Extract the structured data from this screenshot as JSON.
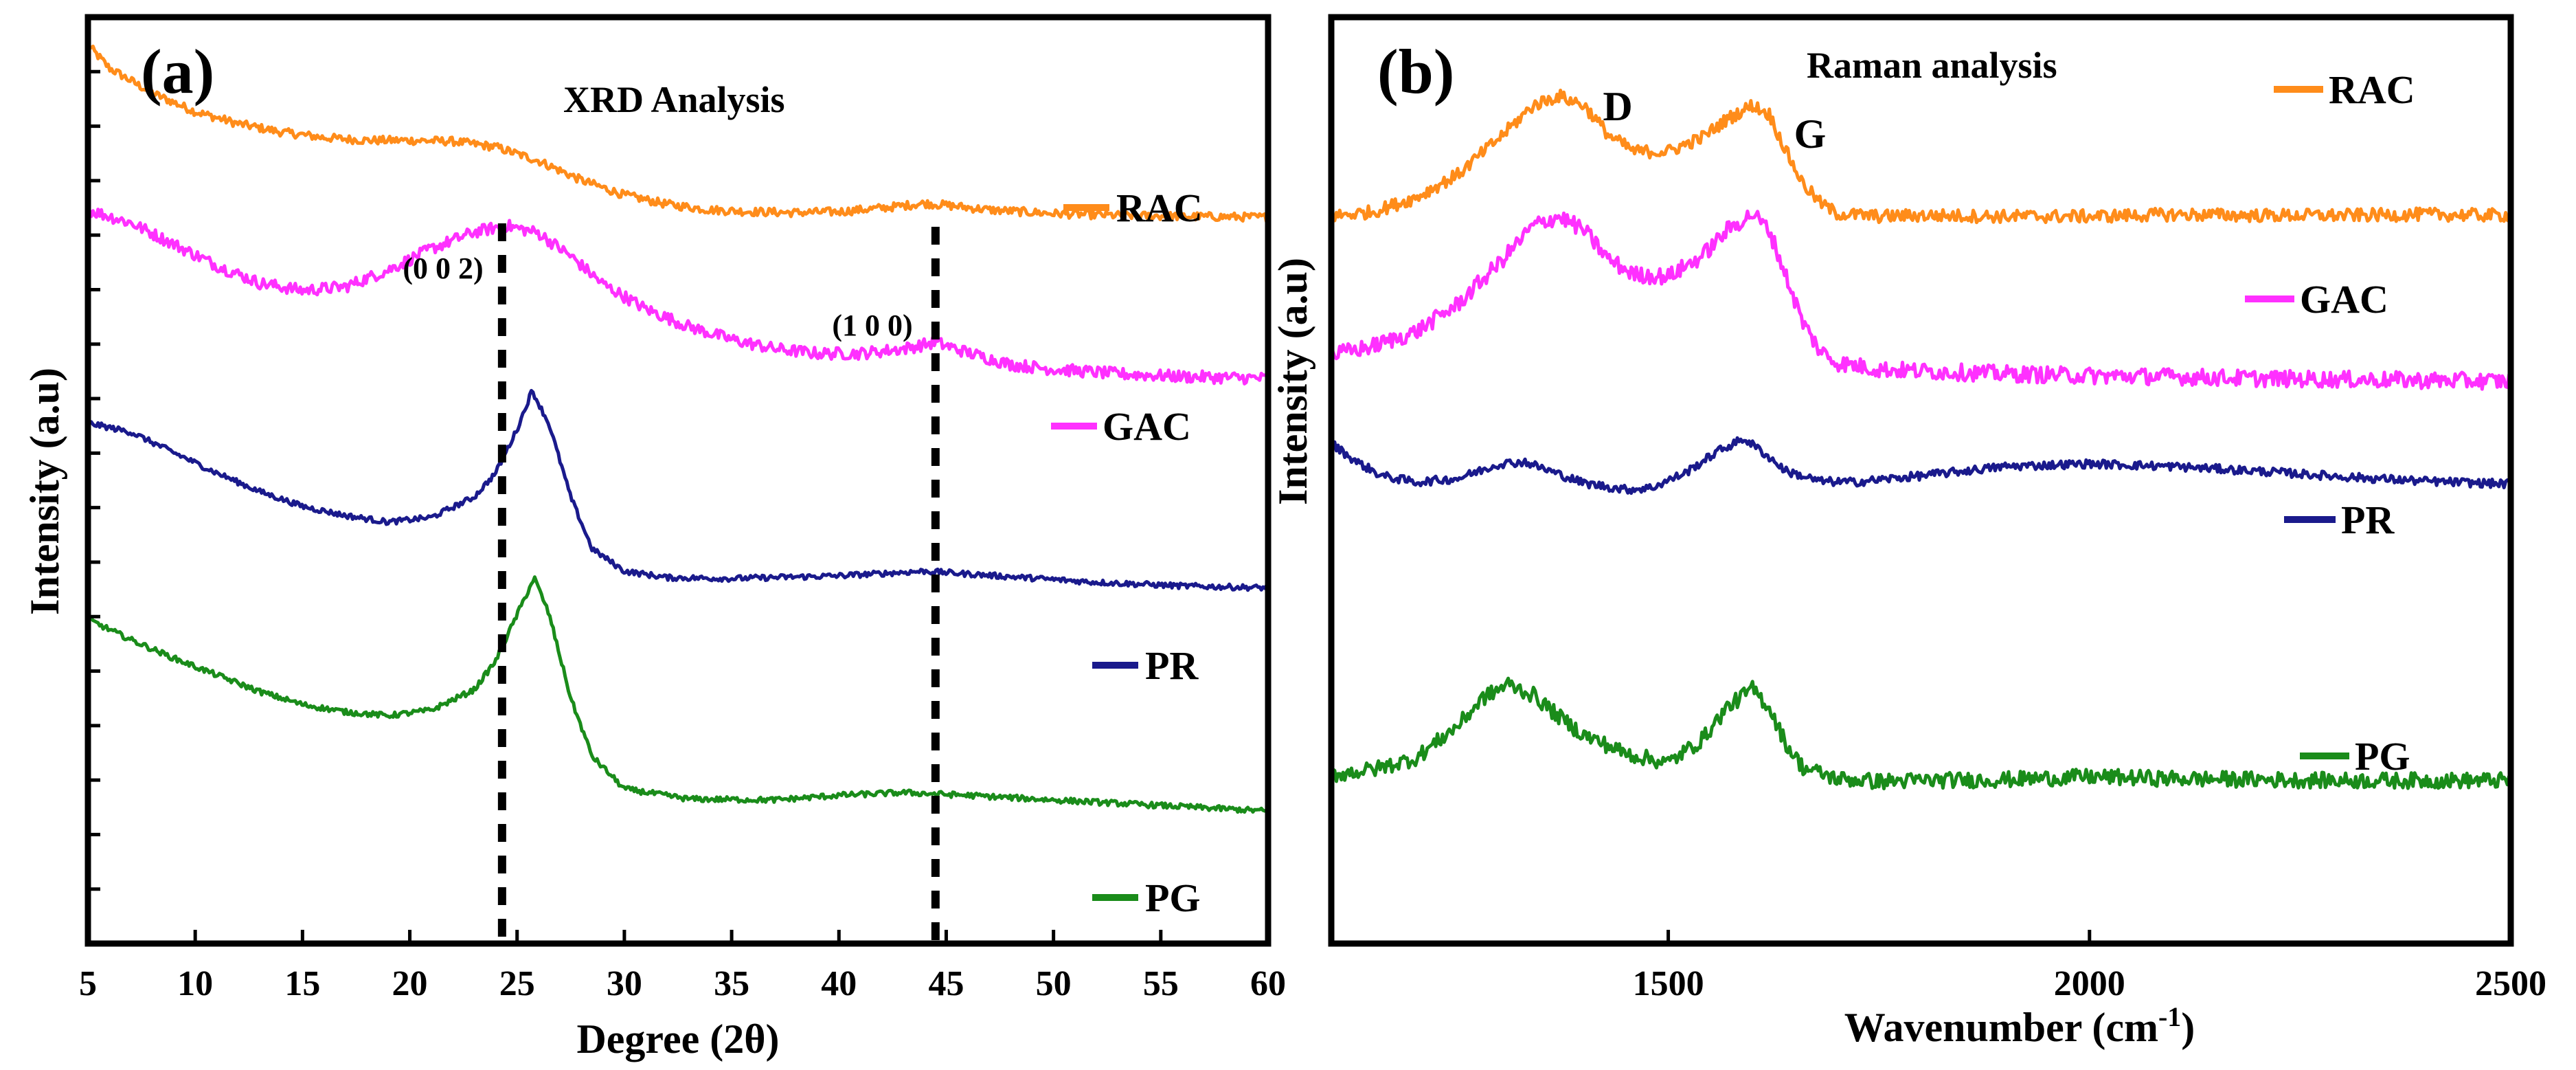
{
  "chart_data": [
    {
      "panel_label": "(a)",
      "type": "line",
      "title": "XRD Analysis",
      "xlabel": "Degree (2θ)",
      "ylabel": "Intensity (a.u)",
      "xlim": [
        5,
        60
      ],
      "ylim": [
        0,
        10
      ],
      "x_ticks": [
        5,
        10,
        15,
        20,
        25,
        30,
        35,
        40,
        45,
        50,
        55,
        60
      ],
      "x_tick_labels": [
        "5",
        "10",
        "15",
        "20",
        "25",
        "30",
        "35",
        "40",
        "45",
        "50",
        "55",
        "60"
      ],
      "y_minor_tick_count": 16,
      "reference_lines": [
        {
          "x": 24.3,
          "label": "(0 0 2)"
        },
        {
          "x": 44.5,
          "label": "(1 0 0)"
        }
      ],
      "series": [
        {
          "name": "RAC",
          "color": "#ff8c1a",
          "x": [
            5,
            6,
            8,
            10,
            12,
            14,
            16,
            18,
            20,
            22,
            24,
            26,
            28,
            30,
            32,
            34,
            36,
            38,
            40,
            42,
            44,
            45,
            47,
            50,
            53,
            56,
            60
          ],
          "y": [
            9.7,
            9.45,
            9.18,
            8.98,
            8.85,
            8.76,
            8.7,
            8.67,
            8.67,
            8.66,
            8.6,
            8.45,
            8.24,
            8.08,
            7.98,
            7.92,
            7.9,
            7.89,
            7.9,
            7.94,
            7.99,
            7.97,
            7.92,
            7.88,
            7.86,
            7.85,
            7.84
          ]
        },
        {
          "name": "GAC",
          "color": "#ff30ff",
          "x": [
            5,
            7,
            9,
            11,
            13,
            15,
            17,
            19,
            21,
            23,
            24.5,
            26,
            27.5,
            29,
            31,
            33,
            35,
            37,
            39,
            41,
            43,
            44.5,
            46,
            48,
            50,
            53,
            56,
            60
          ],
          "y": [
            7.92,
            7.78,
            7.55,
            7.32,
            7.13,
            7.05,
            7.09,
            7.27,
            7.5,
            7.68,
            7.75,
            7.67,
            7.42,
            7.12,
            6.85,
            6.66,
            6.52,
            6.42,
            6.37,
            6.37,
            6.42,
            6.49,
            6.38,
            6.25,
            6.2,
            6.15,
            6.12,
            6.1
          ]
        },
        {
          "name": "PR",
          "color": "#1a1a8c",
          "x": [
            5,
            7,
            9,
            11,
            13,
            15,
            17,
            19,
            21,
            23,
            24,
            25,
            25.7,
            26.5,
            27.5,
            28.5,
            30,
            32,
            35,
            40,
            44,
            48,
            52,
            56,
            60
          ],
          "y": [
            5.62,
            5.52,
            5.3,
            5.08,
            4.88,
            4.72,
            4.62,
            4.55,
            4.6,
            4.82,
            5.08,
            5.55,
            5.97,
            5.6,
            4.82,
            4.26,
            4.02,
            3.95,
            3.94,
            3.97,
            4.02,
            3.96,
            3.9,
            3.86,
            3.84
          ]
        },
        {
          "name": "PG",
          "color": "#1a8c1a",
          "x": [
            5,
            7,
            9,
            11,
            13,
            15,
            17,
            19,
            21,
            23,
            24,
            25,
            25.8,
            26.5,
            27.5,
            28.5,
            30,
            33,
            37,
            40,
            43,
            46,
            50,
            55,
            60
          ],
          "y": [
            3.5,
            3.28,
            3.08,
            2.9,
            2.72,
            2.58,
            2.5,
            2.46,
            2.52,
            2.74,
            3.05,
            3.55,
            3.95,
            3.55,
            2.65,
            2.02,
            1.67,
            1.56,
            1.55,
            1.6,
            1.63,
            1.6,
            1.55,
            1.49,
            1.43
          ]
        }
      ],
      "legend": [
        {
          "label": "RAC",
          "color": "#ff8c1a"
        },
        {
          "label": "GAC",
          "color": "#ff30ff"
        },
        {
          "label": "PR",
          "color": "#1a1a8c"
        },
        {
          "label": "PG",
          "color": "#1a8c1a"
        }
      ],
      "legend_placement": "right, each entry beside its curve"
    },
    {
      "panel_label": "(b)",
      "type": "line",
      "title": "Raman analysis",
      "xlabel": "Wavenumber (cm",
      "xlabel_superscript": "-1",
      "xlabel_suffix": ")",
      "ylabel": "Intensity (a.u)",
      "xlim": [
        1100,
        2500
      ],
      "ylim": [
        0,
        10
      ],
      "x_ticks": [
        1500,
        2000,
        2500
      ],
      "x_tick_labels": [
        "1500",
        "2000",
        "2500"
      ],
      "annotations": [
        {
          "text": "D",
          "x": 1430,
          "y": 9.2
        },
        {
          "text": "G",
          "x": 1655,
          "y": 8.65
        }
      ],
      "series": [
        {
          "name": "RAC",
          "color": "#ff8c1a",
          "x": [
            1100,
            1150,
            1200,
            1250,
            1300,
            1340,
            1370,
            1400,
            1430,
            1460,
            1500,
            1540,
            1570,
            1600,
            1620,
            1640,
            1660,
            1680,
            1700,
            1750,
            1800,
            1900,
            2000,
            2100,
            2200,
            2300,
            2400,
            2500
          ],
          "y": [
            7.85,
            7.9,
            8.05,
            8.3,
            8.7,
            9.05,
            9.15,
            9.05,
            8.72,
            8.55,
            8.55,
            8.7,
            8.9,
            9.05,
            8.95,
            8.55,
            8.2,
            8.0,
            7.88,
            7.85,
            7.86,
            7.85,
            7.85,
            7.87,
            7.86,
            7.86,
            7.87,
            7.86
          ]
        },
        {
          "name": "GAC",
          "color": "#ff30ff",
          "x": [
            1100,
            1150,
            1200,
            1250,
            1300,
            1340,
            1370,
            1400,
            1430,
            1460,
            1500,
            1540,
            1570,
            1600,
            1620,
            1640,
            1660,
            1680,
            1700,
            1750,
            1800,
            1900,
            2000,
            2100,
            2200,
            2300,
            2400,
            2500
          ],
          "y": [
            6.35,
            6.45,
            6.6,
            6.9,
            7.35,
            7.75,
            7.85,
            7.7,
            7.38,
            7.22,
            7.2,
            7.42,
            7.7,
            7.88,
            7.7,
            7.2,
            6.7,
            6.4,
            6.27,
            6.2,
            6.18,
            6.15,
            6.13,
            6.12,
            6.1,
            6.09,
            6.08,
            6.07
          ]
        },
        {
          "name": "PR",
          "color": "#1a1a8c",
          "x": [
            1100,
            1130,
            1160,
            1200,
            1250,
            1300,
            1330,
            1360,
            1400,
            1450,
            1480,
            1520,
            1560,
            1590,
            1610,
            1640,
            1680,
            1720,
            1800,
            1900,
            2000,
            2100,
            2200,
            2300,
            2400,
            2500
          ],
          "y": [
            5.4,
            5.2,
            5.05,
            4.98,
            5.02,
            5.18,
            5.2,
            5.1,
            4.97,
            4.9,
            4.92,
            5.08,
            5.32,
            5.45,
            5.32,
            5.1,
            4.99,
            4.98,
            5.05,
            5.15,
            5.18,
            5.15,
            5.1,
            5.04,
            4.99,
            4.96
          ]
        },
        {
          "name": "PG",
          "color": "#1a8c1a",
          "x": [
            1100,
            1150,
            1200,
            1250,
            1280,
            1310,
            1340,
            1370,
            1400,
            1450,
            1500,
            1540,
            1570,
            1600,
            1620,
            1640,
            1660,
            1700,
            1750,
            1800,
            1900,
            2000,
            2100,
            2200,
            2300,
            2400,
            2500
          ],
          "y": [
            1.82,
            1.88,
            2.0,
            2.35,
            2.65,
            2.8,
            2.68,
            2.45,
            2.25,
            2.05,
            1.95,
            2.2,
            2.55,
            2.75,
            2.55,
            2.15,
            1.9,
            1.78,
            1.75,
            1.76,
            1.77,
            1.8,
            1.78,
            1.77,
            1.76,
            1.76,
            1.76
          ]
        }
      ],
      "legend": [
        {
          "label": "RAC",
          "color": "#ff8c1a"
        },
        {
          "label": "GAC",
          "color": "#ff30ff"
        },
        {
          "label": "PR",
          "color": "#1a1a8c"
        },
        {
          "label": "PG",
          "color": "#1a8c1a"
        }
      ],
      "legend_placement": "right, each entry beside its curve"
    }
  ]
}
